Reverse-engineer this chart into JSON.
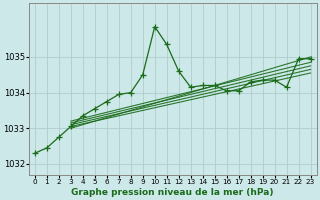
{
  "background_color": "#cce8e8",
  "grid_color": "#b0cccc",
  "line_color": "#1a6b1a",
  "xlabel": "Graphe pression niveau de la mer (hPa)",
  "xlim": [
    -0.5,
    23.5
  ],
  "ylim": [
    1031.7,
    1036.5
  ],
  "yticks": [
    1032,
    1033,
    1034,
    1035
  ],
  "xticks": [
    0,
    1,
    2,
    3,
    4,
    5,
    6,
    7,
    8,
    9,
    10,
    11,
    12,
    13,
    14,
    15,
    16,
    17,
    18,
    19,
    20,
    21,
    22,
    23
  ],
  "main_series_x": [
    0,
    1,
    2,
    3,
    4,
    5,
    6,
    7,
    8,
    9,
    10,
    11,
    12,
    13,
    14,
    15,
    16,
    17,
    18,
    19,
    20,
    21,
    22,
    23
  ],
  "main_series": [
    1032.3,
    1032.45,
    1032.75,
    1033.05,
    1033.35,
    1033.55,
    1033.75,
    1033.95,
    1034.0,
    1034.5,
    1035.85,
    1035.35,
    1034.6,
    1034.15,
    1034.2,
    1034.2,
    1034.05,
    1034.05,
    1034.3,
    1034.35,
    1034.35,
    1034.15,
    1034.95,
    1034.95
  ],
  "linear_lines": [
    {
      "x": [
        3,
        23
      ],
      "y": [
        1033.05,
        1034.55
      ]
    },
    {
      "x": [
        3,
        23
      ],
      "y": [
        1033.1,
        1034.65
      ]
    },
    {
      "x": [
        3,
        23
      ],
      "y": [
        1033.15,
        1034.75
      ]
    },
    {
      "x": [
        3,
        23
      ],
      "y": [
        1033.2,
        1034.85
      ]
    },
    {
      "x": [
        3,
        23
      ],
      "y": [
        1033.0,
        1035.0
      ]
    }
  ]
}
